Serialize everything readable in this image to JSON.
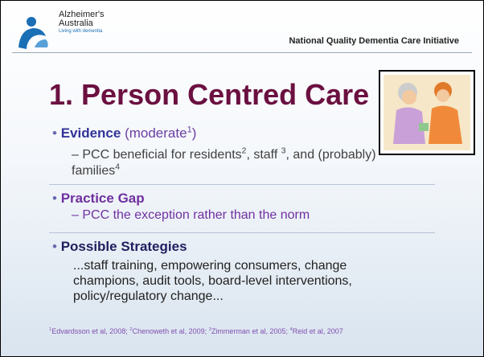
{
  "logo": {
    "name_line1": "Alzheimer's",
    "name_line2": "Australia",
    "tagline": "Living with dementia"
  },
  "header": {
    "initiative": "National Quality Dementia Care Initiative"
  },
  "slide": {
    "title": "1. Person Centred Care",
    "bullets": [
      {
        "heading": "Evidence",
        "note": "(moderate",
        "note_sup": "1",
        "note_end": ")",
        "sub": {
          "t1": "PCC beneficial for residents",
          "s1": "2",
          "t2": ", staff ",
          "s2": "3",
          "t3": ", and (probably) families",
          "s3": "4"
        }
      },
      {
        "heading": "Practice Gap",
        "sub": "PCC the exception rather than the norm"
      },
      {
        "heading": "Possible Strategies",
        "body": "...staff training, empowering consumers, change champions, audit tools, board-level interventions, policy/regulatory change..."
      }
    ],
    "references": [
      {
        "sup": "1",
        "text": "Edvardsson et al, 2008; "
      },
      {
        "sup": "2",
        "text": "Chenoweth et al, 2009; "
      },
      {
        "sup": "3",
        "text": "Zimmerman et al, 2005; "
      },
      {
        "sup": "4",
        "text": "Reid et al, 2007"
      }
    ]
  }
}
